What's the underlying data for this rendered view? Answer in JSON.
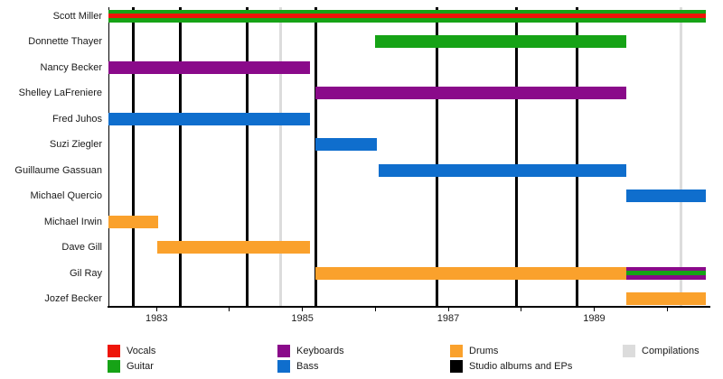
{
  "chart_data": {
    "type": "gantt",
    "description": "Band member tenure timeline by instrument role",
    "x_axis": {
      "range": [
        1982.34,
        1990.58
      ],
      "year_ticks": [
        1983,
        1984,
        1985,
        1986,
        1987,
        1988,
        1989,
        1990
      ],
      "labeled_years": [
        "1983",
        "1985",
        "1987",
        "1989"
      ],
      "grid": "off"
    },
    "colors": {
      "vocals": "#ee1509",
      "guitar": "#16a316",
      "keyboards": "#8a0a8a",
      "bass": "#0f6ecd",
      "drums": "#faa12c",
      "studio": "#000000",
      "compilations": "#dcdcdc"
    },
    "members": [
      {
        "name": "Scott Miller",
        "intervals": [
          {
            "start": 1982.34,
            "end": 1990.53,
            "stripes": [
              "guitar",
              "vocals",
              "guitar"
            ]
          }
        ]
      },
      {
        "name": "Donnette Thayer",
        "intervals": [
          {
            "start": 1986.0,
            "end": 1989.44,
            "stripes": [
              "guitar"
            ]
          }
        ]
      },
      {
        "name": "Nancy Becker",
        "intervals": [
          {
            "start": 1982.34,
            "end": 1985.1,
            "stripes": [
              "keyboards"
            ]
          }
        ]
      },
      {
        "name": "Shelley LaFreniere",
        "intervals": [
          {
            "start": 1985.18,
            "end": 1989.44,
            "stripes": [
              "keyboards"
            ]
          }
        ]
      },
      {
        "name": "Fred Juhos",
        "intervals": [
          {
            "start": 1982.34,
            "end": 1985.1,
            "stripes": [
              "bass"
            ]
          }
        ]
      },
      {
        "name": "Suzi Ziegler",
        "intervals": [
          {
            "start": 1985.18,
            "end": 1986.02,
            "stripes": [
              "bass"
            ]
          }
        ]
      },
      {
        "name": "Guillaume Gassuan",
        "intervals": [
          {
            "start": 1986.04,
            "end": 1989.44,
            "stripes": [
              "bass"
            ]
          }
        ]
      },
      {
        "name": "Michael Quercio",
        "intervals": [
          {
            "start": 1989.44,
            "end": 1990.53,
            "stripes": [
              "bass"
            ]
          }
        ]
      },
      {
        "name": "Michael Irwin",
        "intervals": [
          {
            "start": 1982.34,
            "end": 1983.02,
            "stripes": [
              "drums"
            ]
          }
        ]
      },
      {
        "name": "Dave Gill",
        "intervals": [
          {
            "start": 1983.01,
            "end": 1985.1,
            "stripes": [
              "drums"
            ]
          }
        ]
      },
      {
        "name": "Gil Ray",
        "intervals": [
          {
            "start": 1985.18,
            "end": 1989.44,
            "stripes": [
              "drums"
            ]
          },
          {
            "start": 1989.44,
            "end": 1990.53,
            "stripes": [
              "keyboards",
              "guitar",
              "keyboards"
            ]
          }
        ]
      },
      {
        "name": "Jozef Becker",
        "intervals": [
          {
            "start": 1989.44,
            "end": 1990.53,
            "stripes": [
              "drums"
            ]
          }
        ]
      }
    ],
    "event_lines": {
      "studio_albums_and_eps": [
        1982.68,
        1983.33,
        1984.24,
        1985.19,
        1986.85,
        1987.94,
        1988.77
      ],
      "compilations": [
        1984.7,
        1990.19
      ]
    },
    "legend": {
      "columns": [
        {
          "items": [
            {
              "label": "Vocals",
              "color": "vocals"
            },
            {
              "label": "Guitar",
              "color": "guitar"
            }
          ]
        },
        {
          "items": [
            {
              "label": "Keyboards",
              "color": "keyboards"
            },
            {
              "label": "Bass",
              "color": "bass"
            }
          ]
        },
        {
          "items": [
            {
              "label": "Drums",
              "color": "drums"
            },
            {
              "label": "Studio albums and EPs",
              "color": "studio"
            }
          ]
        },
        {
          "items": [
            {
              "label": "Compilations",
              "color": "compilations"
            }
          ]
        }
      ]
    }
  }
}
